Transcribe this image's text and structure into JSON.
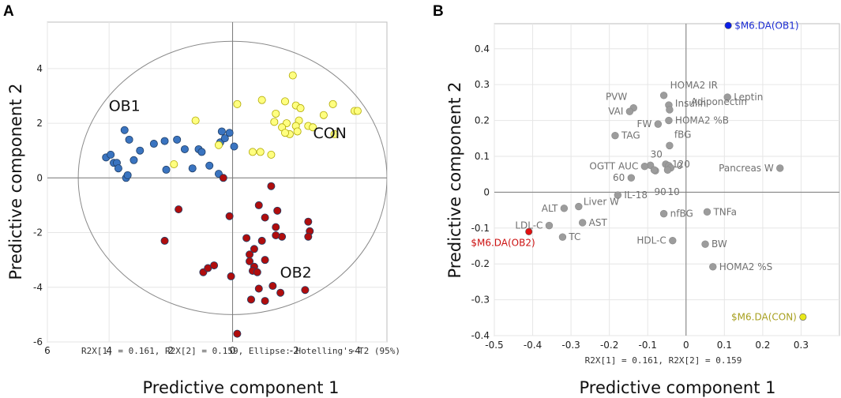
{
  "chart_data": [
    {
      "panel": "A",
      "type": "scatter",
      "xlabel": "Predictive component 1",
      "ylabel": "Predictive component 2",
      "subtitle": "R2X[1] = 0.161, R2X[2] = 0.159, Ellipse: Hotelling's T2 (95%)",
      "xlim": [
        6,
        -5
      ],
      "ylim": [
        -6,
        5.7
      ],
      "xticks": [
        6,
        4,
        2,
        0,
        -2,
        -4
      ],
      "xtick_labels": [
        "6",
        "4",
        "2",
        "0",
        "-2",
        "-4"
      ],
      "yticks": [
        4,
        2,
        0,
        -2,
        -4,
        -6
      ],
      "ellipse": {
        "rx": 5.0,
        "ry": 5.0
      },
      "groups": [
        {
          "name": "OB1",
          "color": "#3a74c0",
          "label_at": [
            3.5,
            2.45
          ],
          "points": [
            [
              4.1,
              0.75
            ],
            [
              3.95,
              0.85
            ],
            [
              3.85,
              0.55
            ],
            [
              3.75,
              0.55
            ],
            [
              3.7,
              0.35
            ],
            [
              3.5,
              1.75
            ],
            [
              3.45,
              0.0
            ],
            [
              3.4,
              0.1
            ],
            [
              3.35,
              1.4
            ],
            [
              3.2,
              0.65
            ],
            [
              3.0,
              1.0
            ],
            [
              2.55,
              1.25
            ],
            [
              2.2,
              1.35
            ],
            [
              2.15,
              0.3
            ],
            [
              1.8,
              1.4
            ],
            [
              1.55,
              1.05
            ],
            [
              1.3,
              0.35
            ],
            [
              1.1,
              1.05
            ],
            [
              1.0,
              0.95
            ],
            [
              0.75,
              0.45
            ],
            [
              0.4,
              1.3
            ],
            [
              0.35,
              1.7
            ],
            [
              0.25,
              1.45
            ],
            [
              0.1,
              1.65
            ],
            [
              -0.05,
              1.15
            ],
            [
              0.45,
              0.15
            ]
          ]
        },
        {
          "name": "CON",
          "color": "#ffff80",
          "label_at": [
            -3.15,
            1.45
          ],
          "points": [
            [
              -1.95,
              3.75
            ],
            [
              -0.15,
              2.7
            ],
            [
              -0.95,
              2.85
            ],
            [
              -1.4,
              2.35
            ],
            [
              -1.7,
              2.8
            ],
            [
              -2.05,
              2.65
            ],
            [
              -2.2,
              2.55
            ],
            [
              -3.25,
              2.7
            ],
            [
              -3.95,
              2.45
            ],
            [
              -4.05,
              2.45
            ],
            [
              -2.95,
              2.3
            ],
            [
              -2.15,
              2.1
            ],
            [
              -2.05,
              1.9
            ],
            [
              -1.75,
              2.0
            ],
            [
              -1.6,
              1.85
            ],
            [
              -1.35,
              2.05
            ],
            [
              -2.45,
              1.9
            ],
            [
              -2.6,
              1.85
            ],
            [
              -3.3,
              1.6
            ],
            [
              -2.1,
              1.7
            ],
            [
              -1.85,
              1.6
            ],
            [
              -1.7,
              1.65
            ],
            [
              -1.25,
              0.85
            ],
            [
              -0.9,
              0.95
            ],
            [
              -0.65,
              0.95
            ],
            [
              0.45,
              1.2
            ],
            [
              1.9,
              0.5
            ],
            [
              1.2,
              2.1
            ]
          ]
        },
        {
          "name": "OB2",
          "color": "#b00d0d",
          "label_at": [
            -2.05,
            -3.65
          ],
          "points": [
            [
              0.3,
              0.0
            ],
            [
              -0.85,
              -1.0
            ],
            [
              -1.25,
              -0.3
            ],
            [
              -1.45,
              -1.2
            ],
            [
              0.1,
              -1.4
            ],
            [
              -1.05,
              -1.45
            ],
            [
              -1.4,
              -1.8
            ],
            [
              1.75,
              -1.15
            ],
            [
              2.2,
              -2.3
            ],
            [
              -2.45,
              -1.6
            ],
            [
              -2.5,
              -1.95
            ],
            [
              -2.45,
              -2.15
            ],
            [
              -1.6,
              -2.15
            ],
            [
              -0.45,
              -2.2
            ],
            [
              -0.7,
              -2.6
            ],
            [
              -1.4,
              -2.1
            ],
            [
              -0.95,
              -2.3
            ],
            [
              -0.55,
              -2.8
            ],
            [
              -1.05,
              -3.0
            ],
            [
              -0.55,
              -3.05
            ],
            [
              -0.7,
              -3.25
            ],
            [
              -0.65,
              -3.4
            ],
            [
              -0.8,
              -3.45
            ],
            [
              0.95,
              -3.45
            ],
            [
              0.8,
              -3.3
            ],
            [
              0.6,
              -3.2
            ],
            [
              0.05,
              -3.6
            ],
            [
              -1.3,
              -3.95
            ],
            [
              -1.55,
              -4.2
            ],
            [
              -2.35,
              -4.1
            ],
            [
              -0.6,
              -4.45
            ],
            [
              -1.05,
              -4.5
            ],
            [
              -0.85,
              -4.05
            ],
            [
              -0.15,
              -5.7
            ]
          ]
        }
      ]
    },
    {
      "panel": "B",
      "type": "scatter",
      "xlabel": "Predictive component 1",
      "ylabel": "Predictive component 2",
      "subtitle": "R2X[1] = 0.161, R2X[2] = 0.159",
      "xlim": [
        -0.5,
        0.4
      ],
      "ylim": [
        -0.4,
        0.47
      ],
      "xticks": [
        -0.5,
        -0.4,
        -0.3,
        -0.2,
        -0.1,
        0,
        0.1,
        0.2,
        0.3
      ],
      "yticks": [
        0.4,
        0.3,
        0.2,
        0.1,
        0,
        -0.1,
        -0.2,
        -0.3,
        -0.4
      ],
      "points": [
        {
          "label": "$M6.DA(OB1)",
          "x": 0.11,
          "y": 0.465,
          "color": "#0a1ee8",
          "label_color": "#1c2dd4",
          "dx": 8,
          "dy": 0,
          "anchor": "start"
        },
        {
          "label": "$M6.DA(OB2)",
          "x": -0.41,
          "y": -0.11,
          "color": "#e11010",
          "label_color": "#cc1010",
          "dx": 8,
          "dy": 14,
          "anchor": "end"
        },
        {
          "label": "$M6.DA(CON)",
          "x": 0.305,
          "y": -0.348,
          "color": "#e8e81a",
          "label_color": "#a8a020",
          "dx": -8,
          "dy": 0,
          "anchor": "end"
        },
        {
          "label": "HOMA2 IR",
          "x": -0.058,
          "y": 0.27,
          "dx": 8,
          "dy": -13
        },
        {
          "label": "Leptin",
          "x": 0.108,
          "y": 0.265,
          "dx": 8,
          "dy": 0
        },
        {
          "label": "PVW",
          "x": -0.137,
          "y": 0.235,
          "dx": -8,
          "dy": -14,
          "anchor": "end"
        },
        {
          "label": "VAI",
          "x": -0.147,
          "y": 0.225,
          "dx": -8,
          "dy": 0,
          "anchor": "end"
        },
        {
          "label": "Insulin",
          "x": -0.045,
          "y": 0.243,
          "dx": 8,
          "dy": -2
        },
        {
          "label": "Adiponectin",
          "x": -0.043,
          "y": 0.23,
          "dx": 27,
          "dy": -10
        },
        {
          "label": "FW",
          "x": -0.073,
          "y": 0.19,
          "dx": -8,
          "dy": 0,
          "anchor": "end"
        },
        {
          "label": "HOMA2 %B",
          "x": -0.045,
          "y": 0.2,
          "dx": 8,
          "dy": 0
        },
        {
          "label": "TAG",
          "x": -0.185,
          "y": 0.158,
          "dx": 8,
          "dy": 0
        },
        {
          "label": "fBG",
          "x": -0.043,
          "y": 0.13,
          "dx": 6,
          "dy": -14
        },
        {
          "label": "30",
          "x": -0.093,
          "y": 0.075,
          "dx": 0,
          "dy": -14
        },
        {
          "label": "OGTT AUC",
          "x": -0.108,
          "y": 0.072,
          "dx": -8,
          "dy": 0,
          "anchor": "end"
        },
        {
          "label": "120",
          "x": -0.053,
          "y": 0.078,
          "dx": 8,
          "dy": 0
        },
        {
          "label": "0",
          "x": -0.045,
          "y": 0.074,
          "dx": 10,
          "dy": 0
        },
        {
          "label": "",
          "x": -0.08,
          "y": 0.06
        },
        {
          "label": "",
          "x": -0.04,
          "y": 0.068
        },
        {
          "label": "60",
          "x": -0.143,
          "y": 0.04,
          "dx": -8,
          "dy": 0,
          "anchor": "end"
        },
        {
          "label": "90",
          "x": -0.083,
          "y": 0.062,
          "dx": 0,
          "dy": 28
        },
        {
          "label": "10",
          "x": -0.048,
          "y": 0.062,
          "dx": 0,
          "dy": 28
        },
        {
          "label": "IL-18",
          "x": -0.178,
          "y": -0.008,
          "dx": 8,
          "dy": 0
        },
        {
          "label": "Liver W",
          "x": -0.28,
          "y": -0.04,
          "dx": 6,
          "dy": -6
        },
        {
          "label": "ALT",
          "x": -0.318,
          "y": -0.045,
          "dx": -8,
          "dy": 0,
          "anchor": "end"
        },
        {
          "label": "AST",
          "x": -0.27,
          "y": -0.085,
          "dx": 8,
          "dy": 0
        },
        {
          "label": "LDL-C",
          "x": -0.357,
          "y": -0.093,
          "dx": -8,
          "dy": 0,
          "anchor": "end"
        },
        {
          "label": "TC",
          "x": -0.322,
          "y": -0.125,
          "dx": 8,
          "dy": 0
        },
        {
          "label": "nfBG",
          "x": -0.058,
          "y": -0.06,
          "dx": 8,
          "dy": 0
        },
        {
          "label": "TNFa",
          "x": 0.055,
          "y": -0.055,
          "dx": 8,
          "dy": 0
        },
        {
          "label": "HDL-C",
          "x": -0.035,
          "y": -0.135,
          "dx": -8,
          "dy": 0,
          "anchor": "end"
        },
        {
          "label": "BW",
          "x": 0.05,
          "y": -0.145,
          "dx": 8,
          "dy": 0
        },
        {
          "label": "Pancreas W",
          "x": 0.245,
          "y": 0.067,
          "dx": -8,
          "dy": 0,
          "anchor": "end"
        },
        {
          "label": "HOMA2 %S",
          "x": 0.07,
          "y": -0.208,
          "dx": 8,
          "dy": 0
        }
      ]
    }
  ]
}
